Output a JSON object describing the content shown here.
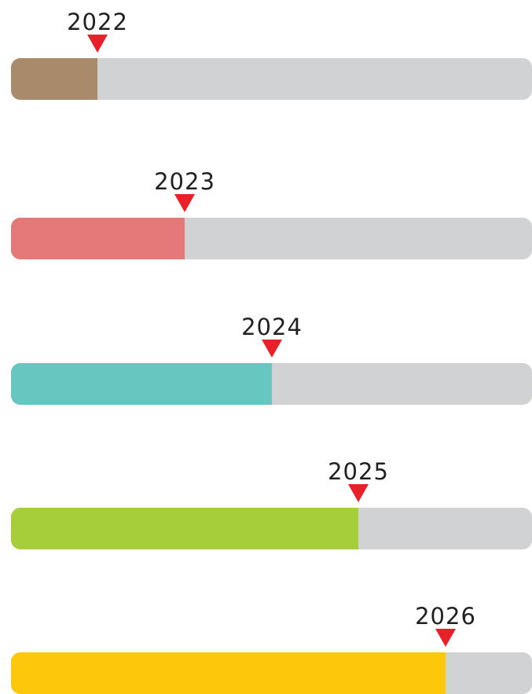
{
  "items": [
    {
      "label": "2022",
      "color": "#a98a6b"
    },
    {
      "label": "2023",
      "color": "#e57878"
    },
    {
      "label": "2024",
      "color": "#67c6c0"
    },
    {
      "label": "2025",
      "color": "#a6cd3a"
    },
    {
      "label": "2026",
      "color": "#fdc70c"
    }
  ]
}
